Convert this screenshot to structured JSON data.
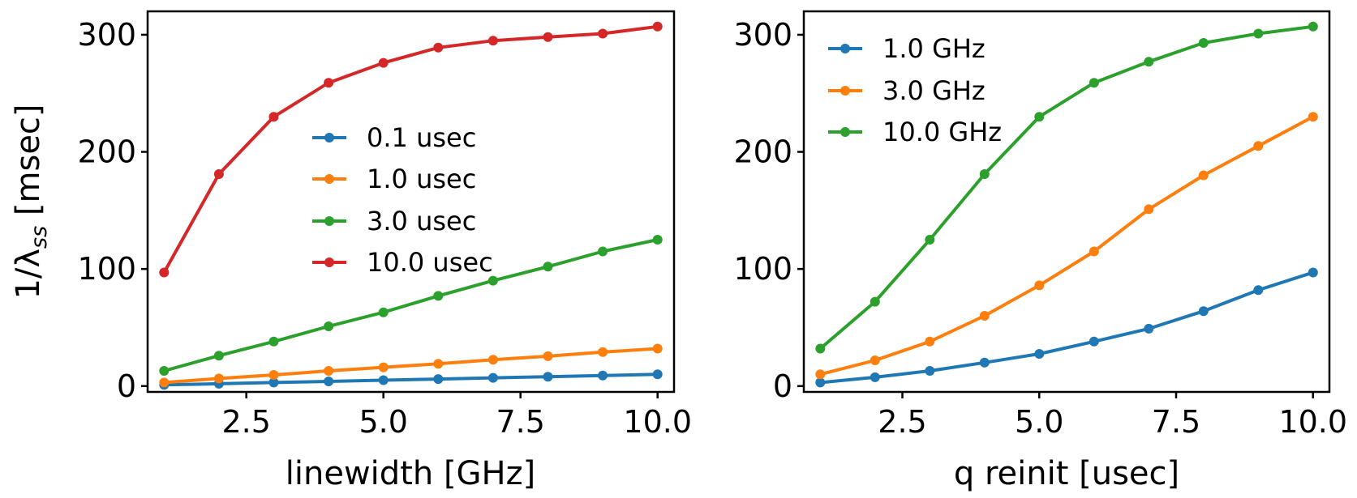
{
  "chart_data": [
    {
      "type": "line",
      "xlabel": "linewidth [GHz]",
      "ylabel": "1/λ",
      "ylabel_sub": "ss",
      "ylabel_unit": " [msec]",
      "xlim": [
        0.7,
        10.3
      ],
      "ylim": [
        -5,
        320
      ],
      "xticks": [
        2.5,
        5.0,
        7.5,
        10.0
      ],
      "xtick_labels": [
        "2.5",
        "5.0",
        "7.5",
        "10.0"
      ],
      "yticks": [
        0,
        100,
        200,
        300
      ],
      "ytick_labels": [
        "0",
        "100",
        "200",
        "300"
      ],
      "legend_position": "center",
      "x": [
        1,
        2,
        3,
        4,
        5,
        6,
        7,
        8,
        9,
        10
      ],
      "series": [
        {
          "name": "0.1 usec",
          "color": "#1f77b4",
          "values": [
            1,
            2,
            3,
            4,
            5,
            6,
            7,
            8,
            9,
            10
          ]
        },
        {
          "name": "1.0 usec",
          "color": "#ff7f0e",
          "values": [
            3,
            6.5,
            9.5,
            13,
            16,
            19,
            22.5,
            25.5,
            29,
            32
          ]
        },
        {
          "name": "3.0 usec",
          "color": "#2ca02c",
          "values": [
            13,
            26,
            38,
            51,
            63,
            77,
            90,
            102,
            115,
            125
          ]
        },
        {
          "name": "10.0 usec",
          "color": "#d62728",
          "values": [
            97,
            181,
            230,
            259,
            276,
            289,
            295,
            298,
            301,
            307
          ]
        }
      ]
    },
    {
      "type": "line",
      "xlabel": "q reinit [usec]",
      "ylabel": "",
      "xlim": [
        0.7,
        10.3
      ],
      "ylim": [
        -5,
        320
      ],
      "xticks": [
        2.5,
        5.0,
        7.5,
        10.0
      ],
      "xtick_labels": [
        "2.5",
        "5.0",
        "7.5",
        "10.0"
      ],
      "yticks": [
        0,
        100,
        200,
        300
      ],
      "ytick_labels": [
        "0",
        "100",
        "200",
        "300"
      ],
      "legend_position": "upper-left",
      "x": [
        1,
        2,
        3,
        4,
        5,
        6,
        7,
        8,
        9,
        10
      ],
      "series": [
        {
          "name": "1.0 GHz",
          "color": "#1f77b4",
          "values": [
            3,
            7.5,
            13,
            20,
            27.5,
            38,
            49,
            64,
            82,
            97
          ]
        },
        {
          "name": "3.0 GHz",
          "color": "#ff7f0e",
          "values": [
            10,
            22,
            38,
            60,
            86,
            115,
            151,
            180,
            205,
            230
          ]
        },
        {
          "name": "10.0 GHz",
          "color": "#2ca02c",
          "values": [
            32,
            72,
            125,
            181,
            230,
            259,
            277,
            293,
            301,
            307
          ]
        }
      ]
    }
  ]
}
